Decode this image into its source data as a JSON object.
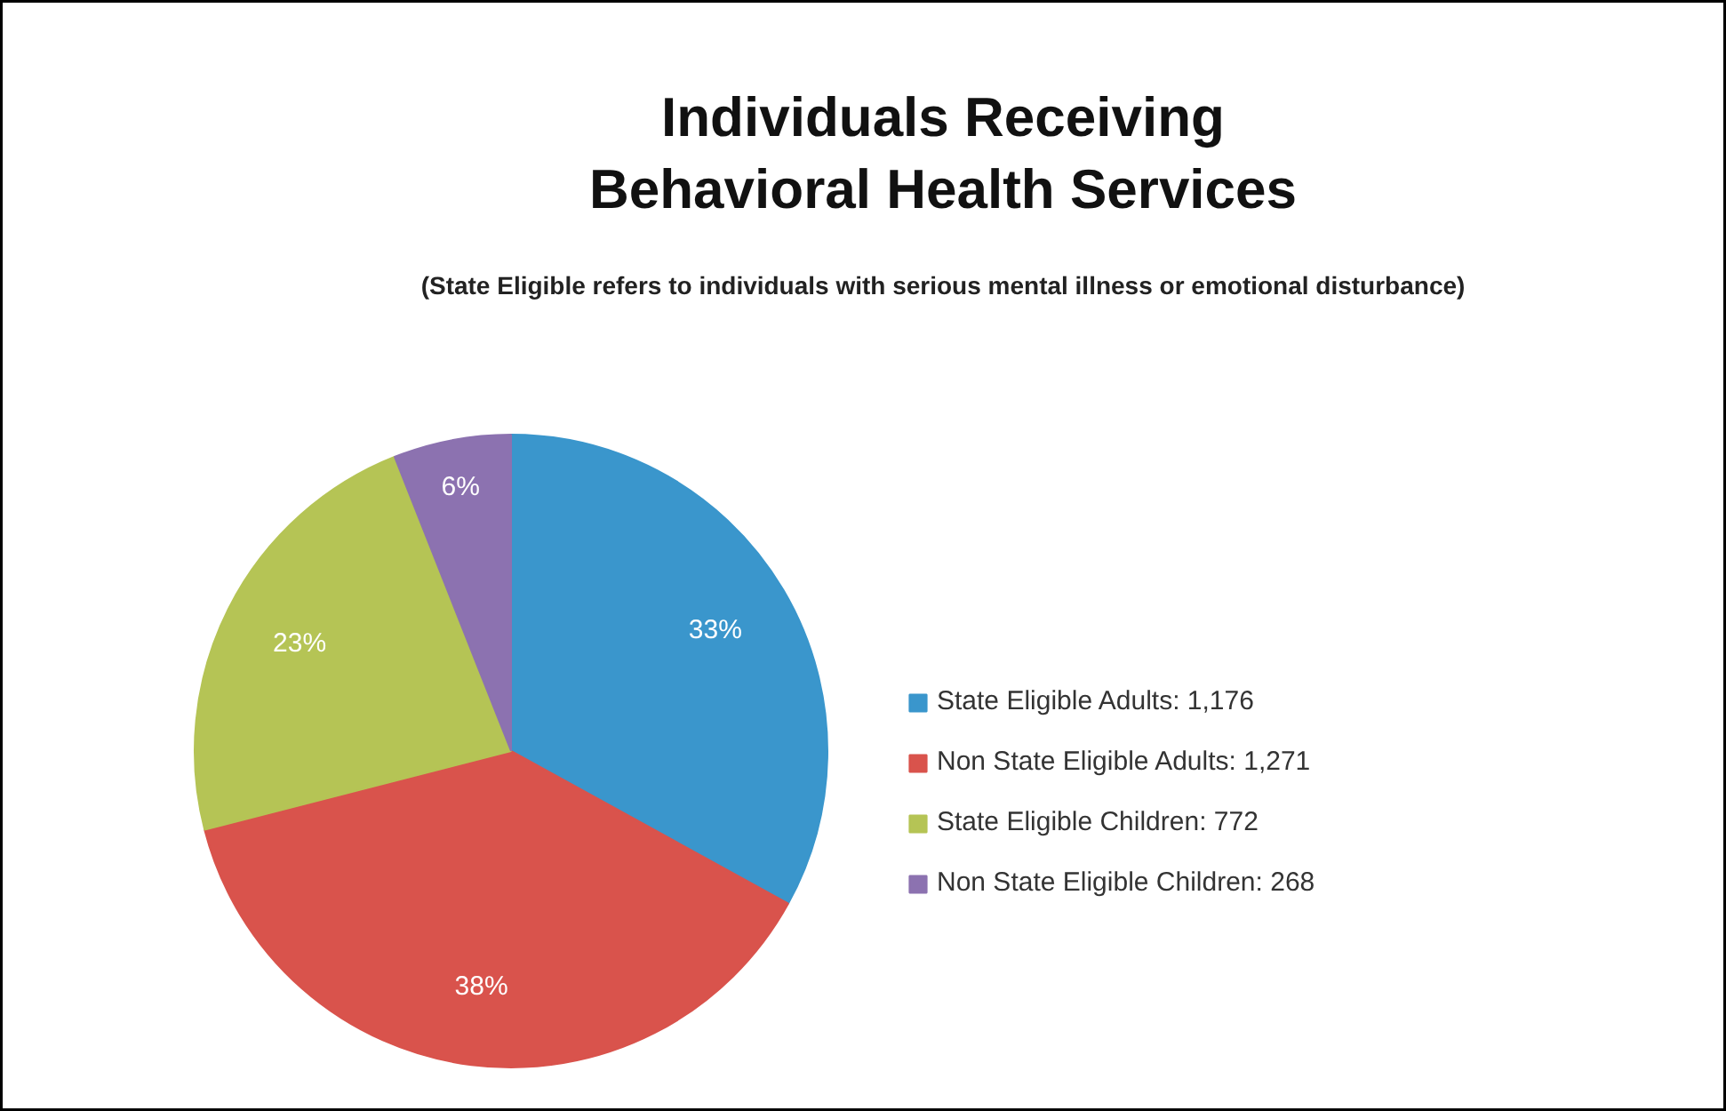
{
  "chart_data": {
    "type": "pie",
    "title": "Individuals Receiving\nBehavioral Health Services",
    "subtitle": "(State Eligible refers to individuals with serious mental illness or emotional disturbance)",
    "categories": [
      "State Eligible Adults: 1,176",
      "Non State Eligible Adults: 1,271",
      "State Eligible Children: 772",
      "Non State Eligible Children: 268"
    ],
    "values": [
      33,
      38,
      23,
      6
    ],
    "value_labels": [
      "33%",
      "38%",
      "23%",
      "6%"
    ],
    "colors": [
      "#3a96cc",
      "#d9534c",
      "#b5c455",
      "#8c72b0"
    ],
    "legend": "right"
  }
}
